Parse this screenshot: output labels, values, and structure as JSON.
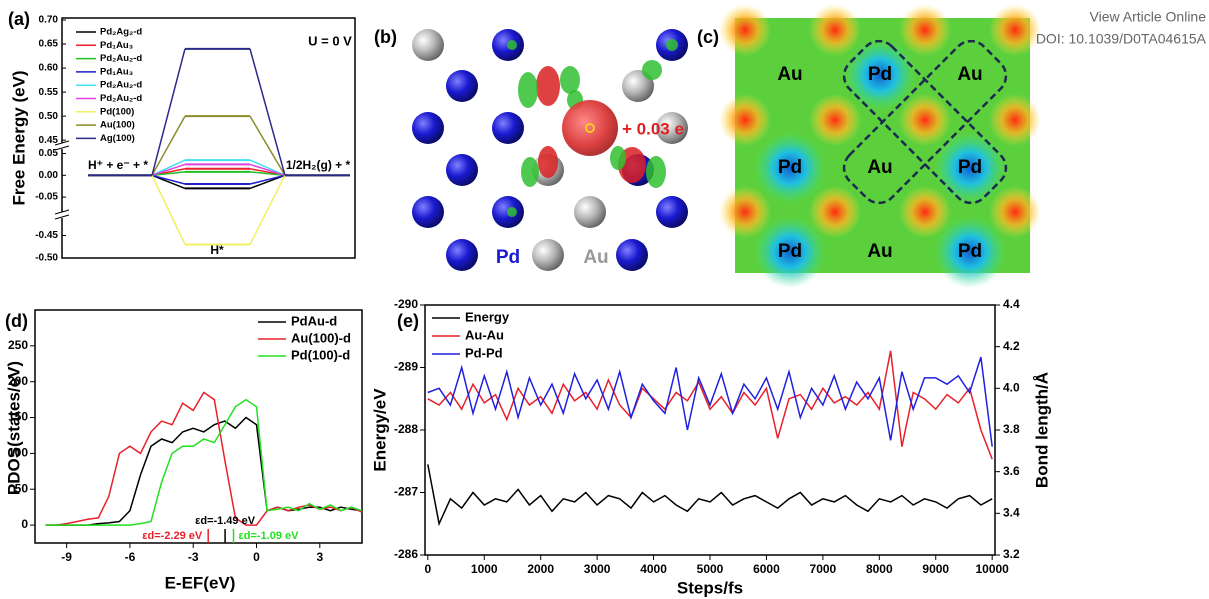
{
  "header": {
    "link": "View Article Online",
    "doi": "DOI: 10.1039/D0TA04615A"
  },
  "chart_data": [
    {
      "type": "energy_diagram",
      "panel": "(a)",
      "ylabel": "Free Energy (eV)",
      "annotation": "U = 0 V",
      "categories": [
        "H⁺ + e⁻ + *",
        "H*",
        "1/2H₂(g) + *"
      ],
      "ysegments": [
        [
          0.44,
          0.7
        ],
        [
          -0.075,
          0.065
        ],
        [
          -0.5,
          -0.42
        ]
      ],
      "yticks": [
        {
          "value": 0.7,
          "label": "0.70"
        },
        0.65,
        {
          "value": 0.6,
          "label": "0.60"
        },
        0.55,
        {
          "value": 0.5,
          "label": "0.50"
        },
        0.45,
        0.05,
        {
          "value": 0,
          "label": "0.00"
        },
        -0.05,
        -0.45,
        {
          "value": -0.5,
          "label": "-0.50"
        }
      ],
      "series": [
        {
          "name": "Pd₂Ag₂-d",
          "color": "#000000",
          "values": [
            0,
            -0.03,
            0
          ]
        },
        {
          "name": "Pd₁Au₃",
          "color": "#e8202a",
          "values": [
            0,
            0.015,
            0
          ]
        },
        {
          "name": "Pd₂Au₂-d",
          "color": "#22c022",
          "values": [
            0,
            0.008,
            0
          ]
        },
        {
          "name": "Pd₁Au₃",
          "color": "#2020c8",
          "values": [
            0,
            -0.02,
            0
          ]
        },
        {
          "name": "Pd₂Au₂-d",
          "color": "#40e0f0",
          "values": [
            0,
            0.035,
            0
          ]
        },
        {
          "name": "Pd₂Au₂-d",
          "color": "#e040e0",
          "values": [
            0,
            0.025,
            0
          ]
        },
        {
          "name": "Pd(100)",
          "color": "#f0f060",
          "values": [
            0,
            -0.47,
            0
          ]
        },
        {
          "name": "Au(100)",
          "color": "#8b8b2a",
          "values": [
            0,
            0.5,
            0
          ]
        },
        {
          "name": "Ag(100)",
          "color": "#2a2a8a",
          "values": [
            0,
            0.64,
            0
          ]
        }
      ]
    },
    {
      "type": "line",
      "panel": "(d)",
      "xlabel": "E-EF(eV)",
      "ylabel": "PDOS(states/eV)",
      "xlim": [
        -10.5,
        5
      ],
      "ylim": [
        -25,
        300
      ],
      "xticks": [
        -9,
        -6,
        -3,
        0,
        3
      ],
      "yticks": [
        0,
        50,
        100,
        150,
        200,
        250
      ],
      "x": [
        -10,
        -9.5,
        -9,
        -8.5,
        -8,
        -7.5,
        -7,
        -6.5,
        -6,
        -5.5,
        -5,
        -4.5,
        -4,
        -3.5,
        -3,
        -2.5,
        -2,
        -1.5,
        -1,
        -0.5,
        0,
        0.5,
        1,
        1.5,
        2,
        2.5,
        3,
        3.5,
        4,
        4.5,
        5
      ],
      "series": [
        {
          "name": "PdAu-d",
          "color": "#000000",
          "values": [
            0,
            0,
            0,
            0,
            0,
            2,
            3,
            5,
            20,
            70,
            110,
            120,
            115,
            130,
            135,
            130,
            140,
            145,
            135,
            150,
            140,
            20,
            25,
            20,
            22,
            25,
            25,
            20,
            25,
            22,
            20
          ]
        },
        {
          "name": "Au(100)-d",
          "color": "#e8202a",
          "values": [
            0,
            0,
            2,
            5,
            8,
            10,
            40,
            100,
            110,
            100,
            130,
            145,
            140,
            170,
            160,
            185,
            175,
            90,
            10,
            0,
            0,
            20,
            25,
            20,
            25,
            28,
            22,
            25,
            20,
            25,
            18
          ]
        },
        {
          "name": "Pd(100)-d",
          "color": "#22e022",
          "values": [
            0,
            0,
            0,
            0,
            0,
            0,
            0,
            0,
            0,
            2,
            5,
            60,
            100,
            110,
            110,
            120,
            115,
            140,
            165,
            175,
            165,
            20,
            22,
            25,
            20,
            30,
            22,
            28,
            20,
            25,
            20
          ]
        }
      ],
      "d_band_centers": [
        {
          "label": "εd=-1.49 eV",
          "value": -1.49,
          "color": "#000000"
        },
        {
          "label": "εd=-2.29 eV",
          "value": -2.29,
          "color": "#e8202a"
        },
        {
          "label": "εd=-1.09 eV",
          "value": -1.09,
          "color": "#22e022"
        }
      ]
    },
    {
      "type": "line",
      "panel": "(e)",
      "xlabel": "Steps/fs",
      "ylabel": "Energy/eV",
      "y2label": "Bond length/Å",
      "xlim": [
        -50,
        10050
      ],
      "ylim": [
        -286,
        -290
      ],
      "y2lim": [
        3.2,
        4.4
      ],
      "xticks": [
        0,
        1000,
        2000,
        3000,
        4000,
        5000,
        6000,
        7000,
        8000,
        9000,
        10000
      ],
      "yticks": [
        -290,
        -289,
        -288,
        -287,
        -286
      ],
      "y2ticks": [
        3.2,
        3.4,
        3.6,
        3.8,
        {
          "value": 4,
          "label": "4.0"
        },
        4.2,
        4.4
      ],
      "x": [
        0,
        200,
        400,
        600,
        800,
        1000,
        1200,
        1400,
        1600,
        1800,
        2000,
        2200,
        2400,
        2600,
        2800,
        3000,
        3200,
        3400,
        3600,
        3800,
        4000,
        4200,
        4400,
        4600,
        4800,
        5000,
        5200,
        5400,
        5600,
        5800,
        6000,
        6200,
        6400,
        6600,
        6800,
        7000,
        7200,
        7400,
        7600,
        7800,
        8000,
        8200,
        8400,
        8600,
        8800,
        9000,
        9200,
        9400,
        9600,
        9800,
        10000
      ],
      "series": [
        {
          "name": "Energy",
          "color": "#000000",
          "values": [
            -287.45,
            -286.5,
            -286.9,
            -286.75,
            -287.0,
            -286.8,
            -286.9,
            -286.85,
            -287.05,
            -286.8,
            -286.95,
            -286.7,
            -286.9,
            -286.85,
            -287.0,
            -286.8,
            -286.95,
            -286.9,
            -286.75,
            -287.0,
            -286.85,
            -286.95,
            -286.8,
            -286.7,
            -286.9,
            -286.85,
            -287.0,
            -286.8,
            -286.9,
            -286.95,
            -286.85,
            -286.75,
            -286.9,
            -287.0,
            -286.8,
            -286.9,
            -286.85,
            -286.95,
            -286.8,
            -286.7,
            -286.9,
            -286.85,
            -286.95,
            -286.8,
            -286.9,
            -286.85,
            -286.75,
            -286.9,
            -286.95,
            -286.8,
            -286.9
          ]
        },
        {
          "name": "Au-Au",
          "color": "#e8202a",
          "axis": "y2",
          "values": [
            3.95,
            3.92,
            3.98,
            3.9,
            4.02,
            3.93,
            3.97,
            3.85,
            4.0,
            3.92,
            3.96,
            3.88,
            4.02,
            3.94,
            3.98,
            3.9,
            4.04,
            3.92,
            3.86,
            4.0,
            3.95,
            3.9,
            3.98,
            3.94,
            4.03,
            3.9,
            3.96,
            3.88,
            3.98,
            3.92,
            4.0,
            3.76,
            3.95,
            3.97,
            3.9,
            4.0,
            3.93,
            3.96,
            3.92,
            3.98,
            3.9,
            4.18,
            3.72,
            3.98,
            3.95,
            3.9,
            3.97,
            3.93,
            4.0,
            3.8,
            3.66
          ]
        },
        {
          "name": "Pd-Pd",
          "color": "#2020e0",
          "axis": "y2",
          "values": [
            3.98,
            4.0,
            3.92,
            4.1,
            3.88,
            4.06,
            3.9,
            4.08,
            3.86,
            4.05,
            3.92,
            4.02,
            3.88,
            4.07,
            3.95,
            4.04,
            3.9,
            4.08,
            3.86,
            4.02,
            3.94,
            3.88,
            4.1,
            3.8,
            4.05,
            3.92,
            4.07,
            3.88,
            4.02,
            3.95,
            4.05,
            3.9,
            4.08,
            3.86,
            4.0,
            3.92,
            4.06,
            3.9,
            4.03,
            3.95,
            4.05,
            3.75,
            4.08,
            3.9,
            4.05,
            4.05,
            4.02,
            4.06,
            3.98,
            4.15,
            3.72
          ]
        }
      ]
    }
  ],
  "panel_b": {
    "label": "(b)",
    "charge": "+ 0.03 e",
    "legend": [
      "Pd",
      "Au"
    ]
  },
  "panel_c": {
    "label": "(c)",
    "sites": [
      [
        "Au",
        "Pd",
        "Au"
      ],
      [
        "Pd",
        "Au",
        "Pd"
      ],
      [
        "Pd",
        "Au",
        "Pd"
      ]
    ]
  }
}
